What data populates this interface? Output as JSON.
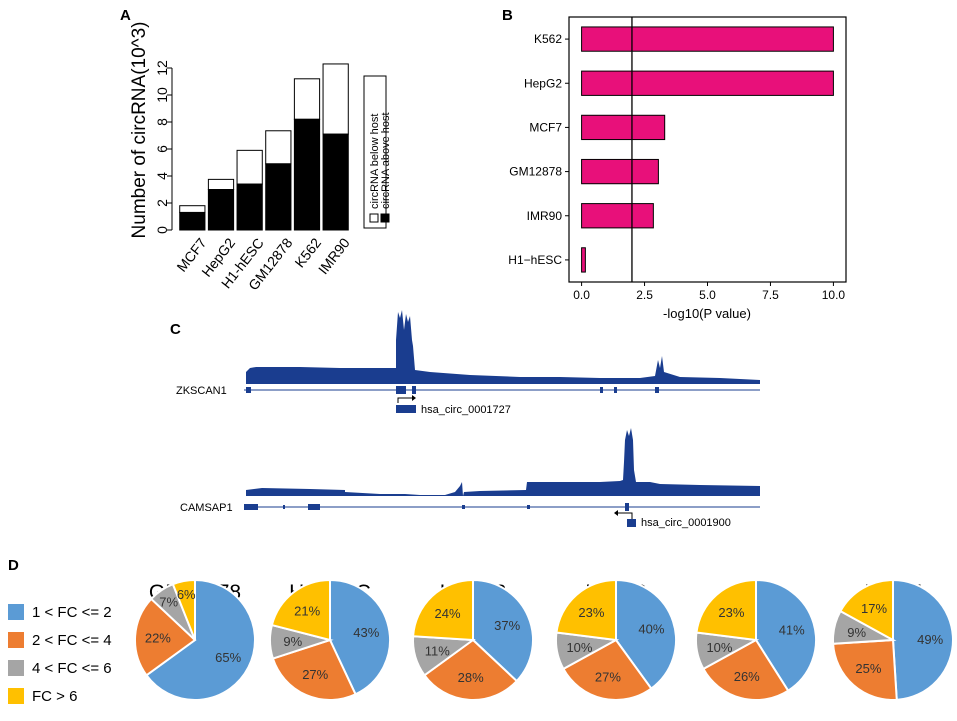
{
  "panels": {
    "a": "A",
    "b": "B",
    "c": "C",
    "d": "D"
  },
  "colors": {
    "black": "#000000",
    "magenta": "#e8107a",
    "track_blue": "#1a3d8f",
    "pie_blue": "#5b9bd5",
    "pie_orange": "#ed7d31",
    "pie_gray": "#a5a5a5",
    "pie_yellow": "#ffc000"
  },
  "chart_data": [
    {
      "id": "A",
      "type": "bar",
      "stacked": true,
      "categories": [
        "MCF7",
        "HepG2",
        "H1-hESC",
        "GM12878",
        "K562",
        "IMR90"
      ],
      "series": [
        {
          "name": "circRNA above host",
          "values": [
            1.3,
            3.0,
            3.4,
            4.9,
            8.2,
            7.1
          ]
        },
        {
          "name": "circRNA below host",
          "values": [
            0.5,
            0.75,
            2.5,
            2.45,
            3.0,
            5.2
          ]
        }
      ],
      "ylabel": "Number of circRNA(10^3)",
      "ylim": [
        0,
        12
      ],
      "yticks": [
        "0",
        "2",
        "4",
        "6",
        "8",
        "10",
        "12"
      ],
      "legend": [
        "circRNA below host",
        "circRNA above host"
      ]
    },
    {
      "id": "B",
      "type": "bar",
      "orientation": "horizontal",
      "categories": [
        "K562",
        "HepG2",
        "MCF7",
        "GM12878",
        "IMR90",
        "H1−hESC"
      ],
      "values": [
        10.0,
        10.0,
        3.3,
        3.05,
        2.85,
        0.15
      ],
      "xlabel": "-log10(P value)",
      "xlim": [
        -0.5,
        10.5
      ],
      "xticks": [
        "0.0",
        "2.5",
        "5.0",
        "7.5",
        "10.0"
      ],
      "threshold": 2.0
    },
    {
      "id": "D",
      "type": "pie",
      "legend": [
        "1 < FC <= 2",
        "2 < FC <= 4",
        "4 < FC <= 6",
        "FC > 6"
      ],
      "pies": [
        {
          "title": "GM12878",
          "values": [
            65,
            22,
            7,
            6
          ],
          "labels": [
            "65%",
            "22%",
            "7%",
            "6%"
          ]
        },
        {
          "title": "H1hESC",
          "values": [
            43,
            27,
            9,
            21
          ],
          "labels": [
            "43%",
            "27%",
            "9%",
            "21%"
          ]
        },
        {
          "title": "HepG2",
          "values": [
            37,
            28,
            11,
            24
          ],
          "labels": [
            "37%",
            "28%",
            "11%",
            "24%"
          ]
        },
        {
          "title": "IMR90",
          "values": [
            40,
            27,
            10,
            23
          ],
          "labels": [
            "40%",
            "27%",
            "10%",
            "23%"
          ]
        },
        {
          "title": "K562",
          "values": [
            41,
            26,
            10,
            23
          ],
          "labels": [
            "41%",
            "26%",
            "10%",
            "23%"
          ]
        },
        {
          "title": "MCF7",
          "values": [
            49,
            25,
            9,
            17
          ],
          "labels": [
            "49%",
            "25%",
            "9%",
            "17%"
          ]
        }
      ]
    }
  ],
  "tracks": {
    "zkscan1": {
      "gene": "ZKSCAN1",
      "circ": "hsa_circ_0001727"
    },
    "camsap1": {
      "gene": "CAMSAP1",
      "circ": "hsa_circ_0001900"
    }
  }
}
